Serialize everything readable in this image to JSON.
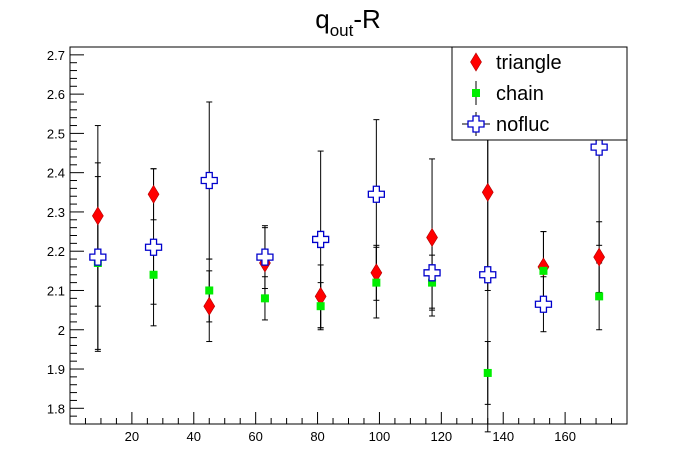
{
  "chart_data": {
    "type": "scatter",
    "title": "q",
    "title_sub": "out",
    "title_suffix": "-R",
    "xlabel": "",
    "ylabel": "",
    "xlim": [
      0,
      180
    ],
    "ylim": [
      1.76,
      2.72
    ],
    "xticks": [
      20,
      40,
      60,
      80,
      100,
      120,
      140,
      160
    ],
    "yticks": [
      1.8,
      1.9,
      2.0,
      2.1,
      2.2,
      2.3,
      2.4,
      2.5,
      2.6,
      2.7
    ],
    "ytick_labels": [
      "1.8",
      "1.9",
      "2",
      "2.1",
      "2.2",
      "2.3",
      "2.4",
      "2.5",
      "2.6",
      "2.7"
    ],
    "grid": false,
    "legend_position": "top-right",
    "series": [
      {
        "name": "triangle",
        "marker": "diamond",
        "color": "#ff0000",
        "points": [
          {
            "x": 9,
            "y": 2.29,
            "err": 0.23
          },
          {
            "x": 27,
            "y": 2.345,
            "err": 0.065
          },
          {
            "x": 45,
            "y": 2.06,
            "err": 0.09
          },
          {
            "x": 63,
            "y": 2.17,
            "err": 0.09
          },
          {
            "x": 81,
            "y": 2.085,
            "err": 0.08
          },
          {
            "x": 99,
            "y": 2.145,
            "err": 0.07
          },
          {
            "x": 117,
            "y": 2.235,
            "err": 0.2
          },
          {
            "x": 135,
            "y": 2.35,
            "err": 0.25
          },
          {
            "x": 153,
            "y": 2.16,
            "err": 0.09
          },
          {
            "x": 171,
            "y": 2.185,
            "err": 0.09
          }
        ]
      },
      {
        "name": "chain",
        "marker": "square",
        "color": "#00ee00",
        "points": [
          {
            "x": 9,
            "y": 2.17,
            "err": 0.22
          },
          {
            "x": 27,
            "y": 2.14,
            "err": 0.075
          },
          {
            "x": 45,
            "y": 2.1,
            "err": 0.08
          },
          {
            "x": 63,
            "y": 2.08,
            "err": 0.055
          },
          {
            "x": 81,
            "y": 2.06,
            "err": 0.06
          },
          {
            "x": 99,
            "y": 2.12,
            "err": 0.09
          },
          {
            "x": 117,
            "y": 2.12,
            "err": 0.07
          },
          {
            "x": 135,
            "y": 1.89,
            "err": 0.08
          },
          {
            "x": 153,
            "y": 2.15,
            "err": 0.1
          },
          {
            "x": 171,
            "y": 2.085,
            "err": 0.085
          }
        ]
      },
      {
        "name": "nofluc",
        "marker": "open-cross",
        "color": "#0000cc",
        "points": [
          {
            "x": 9,
            "y": 2.185,
            "err": 0.24
          },
          {
            "x": 27,
            "y": 2.21,
            "err": 0.2
          },
          {
            "x": 45,
            "y": 2.38,
            "err": 0.2
          },
          {
            "x": 63,
            "y": 2.185,
            "err": 0.08
          },
          {
            "x": 81,
            "y": 2.23,
            "err": 0.225
          },
          {
            "x": 99,
            "y": 2.345,
            "err": 0.19
          },
          {
            "x": 117,
            "y": 2.145,
            "err": 0.09
          },
          {
            "x": 135,
            "y": 2.14,
            "err": 0.4
          },
          {
            "x": 153,
            "y": 2.065,
            "err": 0.07
          },
          {
            "x": 171,
            "y": 2.465,
            "err": 0.25
          }
        ]
      }
    ]
  }
}
